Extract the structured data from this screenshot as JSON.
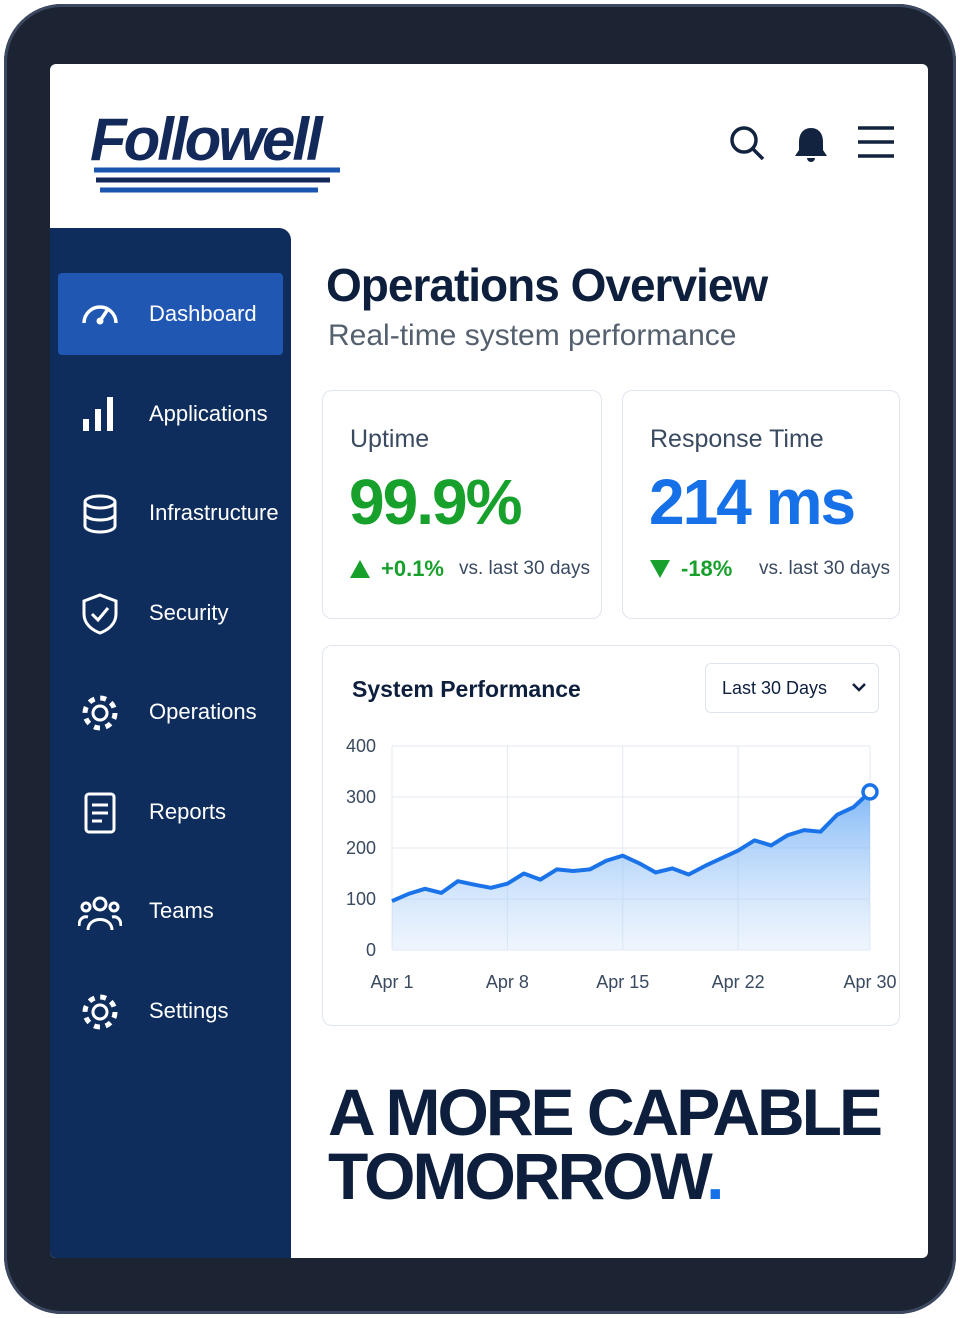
{
  "header": {
    "logo": "Followell"
  },
  "sidebar": {
    "items": [
      "Dashboard",
      "Applications",
      "Infrastructure",
      "Security",
      "Operations",
      "Reports",
      "Teams",
      "Settings"
    ],
    "active": 0
  },
  "page": {
    "title": "Operations Overview",
    "subtitle": "Real-time system performance"
  },
  "metrics": [
    {
      "label": "Uptime",
      "value": "99.9%",
      "change": "+0.1%",
      "direction": "up",
      "comparison": "vs. last 30 days",
      "color": "#17a02b"
    },
    {
      "label": "Response Time",
      "value": "214 ms",
      "change": "-18%",
      "direction": "down",
      "comparison": "vs. last 30 days",
      "color": "#1670e8"
    }
  ],
  "chart": {
    "type": "line",
    "title": "System Performance",
    "range_selector": "Last 30 Days",
    "categories": [
      "Apr 1",
      null,
      null,
      null,
      null,
      null,
      null,
      "Apr 8",
      null,
      null,
      null,
      null,
      null,
      null,
      "Apr 15",
      null,
      null,
      null,
      null,
      null,
      null,
      "Apr 22",
      null,
      null,
      null,
      null,
      null,
      null,
      null,
      "Apr 30"
    ],
    "values": [
      96,
      110,
      120,
      112,
      135,
      128,
      122,
      130,
      150,
      138,
      158,
      155,
      158,
      175,
      185,
      170,
      152,
      160,
      148,
      165,
      180,
      195,
      215,
      205,
      225,
      235,
      232,
      265,
      280,
      310
    ],
    "ylim": [
      0,
      400
    ],
    "yticks": [
      0,
      100,
      200,
      300,
      400
    ],
    "color": "#1a73e8",
    "grid": true
  },
  "tagline": {
    "lines": [
      "A MORE CAPABLE",
      "TOMORROW"
    ],
    "end": "."
  }
}
